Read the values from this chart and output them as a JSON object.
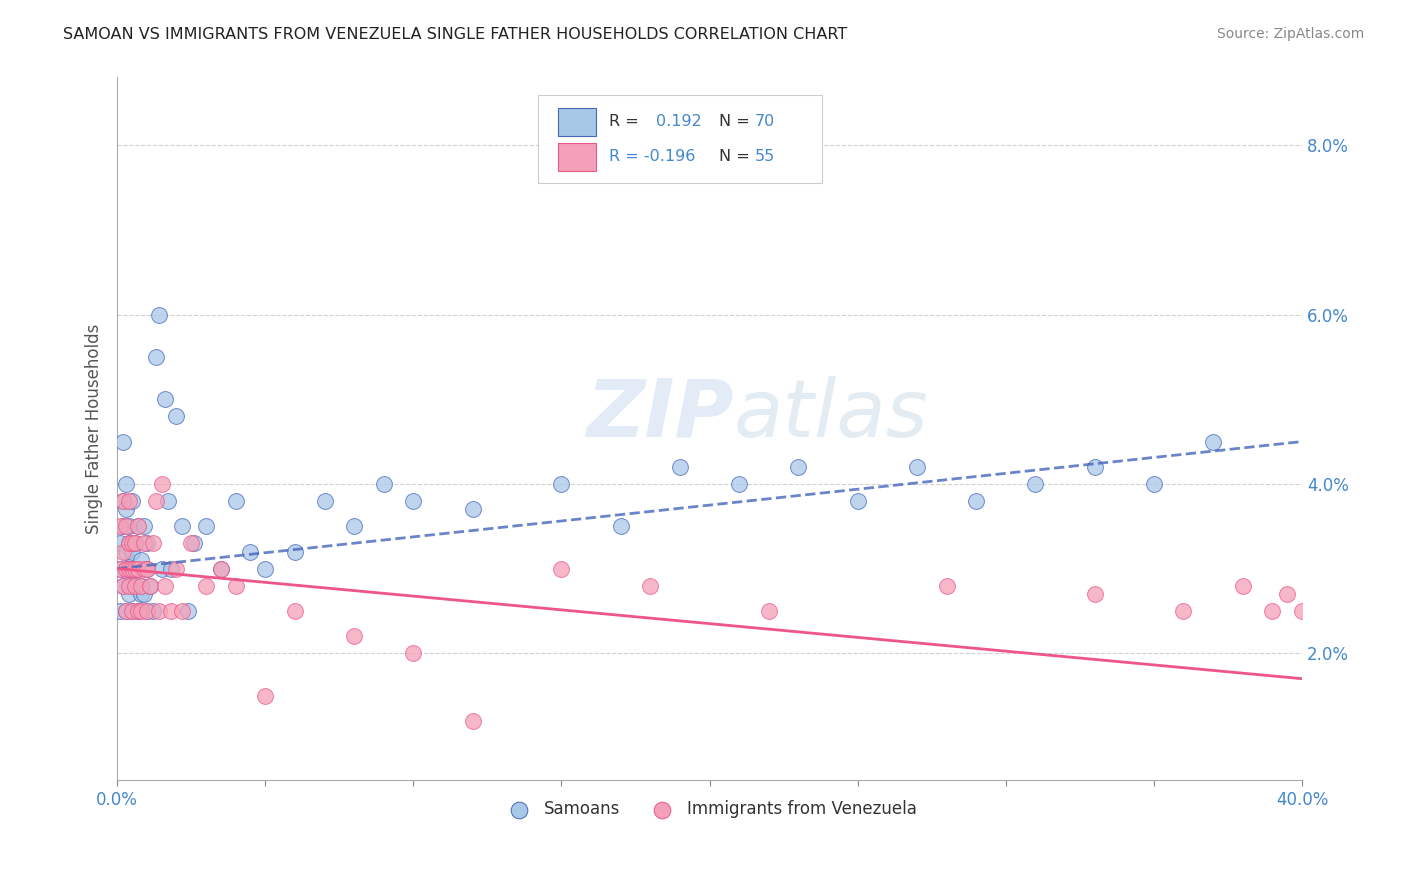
{
  "title": "SAMOAN VS IMMIGRANTS FROM VENEZUELA SINGLE FATHER HOUSEHOLDS CORRELATION CHART",
  "source": "Source: ZipAtlas.com",
  "ylabel": "Single Father Households",
  "xlim": [
    0.0,
    0.4
  ],
  "ylim": [
    0.005,
    0.088
  ],
  "yticks": [
    0.02,
    0.04,
    0.06,
    0.08
  ],
  "ytick_labels": [
    "2.0%",
    "4.0%",
    "6.0%",
    "8.0%"
  ],
  "xtick_labels_show": [
    "0.0%",
    "40.0%"
  ],
  "xticks_show": [
    0.0,
    0.4
  ],
  "color_blue": "#A8C8E8",
  "color_pink": "#F4A0B8",
  "trend_blue": "#4466BB",
  "trend_pink": "#EE5588",
  "background": "#ffffff",
  "grid_color": "#cccccc",
  "title_color": "#222222",
  "axis_label_color": "#555555",
  "tick_color": "#4488CC",
  "samoans_x": [
    0.001,
    0.001,
    0.001,
    0.002,
    0.002,
    0.002,
    0.002,
    0.003,
    0.003,
    0.003,
    0.003,
    0.003,
    0.004,
    0.004,
    0.004,
    0.004,
    0.004,
    0.005,
    0.005,
    0.005,
    0.005,
    0.006,
    0.006,
    0.006,
    0.007,
    0.007,
    0.007,
    0.008,
    0.008,
    0.008,
    0.009,
    0.009,
    0.01,
    0.01,
    0.01,
    0.011,
    0.012,
    0.013,
    0.014,
    0.015,
    0.016,
    0.017,
    0.018,
    0.02,
    0.022,
    0.024,
    0.026,
    0.03,
    0.035,
    0.04,
    0.045,
    0.05,
    0.06,
    0.07,
    0.08,
    0.09,
    0.1,
    0.12,
    0.15,
    0.17,
    0.19,
    0.21,
    0.23,
    0.25,
    0.27,
    0.29,
    0.31,
    0.33,
    0.35,
    0.37
  ],
  "samoans_y": [
    0.033,
    0.03,
    0.025,
    0.028,
    0.038,
    0.045,
    0.035,
    0.032,
    0.037,
    0.03,
    0.025,
    0.04,
    0.03,
    0.028,
    0.035,
    0.027,
    0.033,
    0.025,
    0.032,
    0.038,
    0.03,
    0.028,
    0.03,
    0.033,
    0.025,
    0.035,
    0.03,
    0.027,
    0.031,
    0.028,
    0.027,
    0.035,
    0.025,
    0.033,
    0.03,
    0.028,
    0.025,
    0.055,
    0.06,
    0.03,
    0.05,
    0.038,
    0.03,
    0.048,
    0.035,
    0.025,
    0.033,
    0.035,
    0.03,
    0.038,
    0.032,
    0.03,
    0.032,
    0.038,
    0.035,
    0.04,
    0.038,
    0.037,
    0.04,
    0.035,
    0.042,
    0.04,
    0.042,
    0.038,
    0.042,
    0.038,
    0.04,
    0.042,
    0.04,
    0.045
  ],
  "venezuela_x": [
    0.001,
    0.001,
    0.002,
    0.002,
    0.002,
    0.003,
    0.003,
    0.003,
    0.004,
    0.004,
    0.004,
    0.004,
    0.005,
    0.005,
    0.005,
    0.006,
    0.006,
    0.006,
    0.007,
    0.007,
    0.007,
    0.008,
    0.008,
    0.009,
    0.009,
    0.01,
    0.01,
    0.011,
    0.012,
    0.013,
    0.014,
    0.015,
    0.016,
    0.018,
    0.02,
    0.022,
    0.025,
    0.03,
    0.035,
    0.04,
    0.05,
    0.06,
    0.08,
    0.1,
    0.12,
    0.15,
    0.18,
    0.22,
    0.28,
    0.33,
    0.36,
    0.38,
    0.39,
    0.395,
    0.4
  ],
  "venezuela_y": [
    0.03,
    0.035,
    0.028,
    0.032,
    0.038,
    0.03,
    0.025,
    0.035,
    0.03,
    0.028,
    0.033,
    0.038,
    0.03,
    0.025,
    0.033,
    0.03,
    0.028,
    0.033,
    0.025,
    0.03,
    0.035,
    0.028,
    0.025,
    0.03,
    0.033,
    0.025,
    0.03,
    0.028,
    0.033,
    0.038,
    0.025,
    0.04,
    0.028,
    0.025,
    0.03,
    0.025,
    0.033,
    0.028,
    0.03,
    0.028,
    0.015,
    0.025,
    0.022,
    0.02,
    0.012,
    0.03,
    0.028,
    0.025,
    0.028,
    0.027,
    0.025,
    0.028,
    0.025,
    0.027,
    0.025
  ],
  "blue_trend_start_y": 0.03,
  "blue_trend_end_y": 0.045,
  "pink_trend_start_y": 0.03,
  "pink_trend_end_y": 0.017
}
